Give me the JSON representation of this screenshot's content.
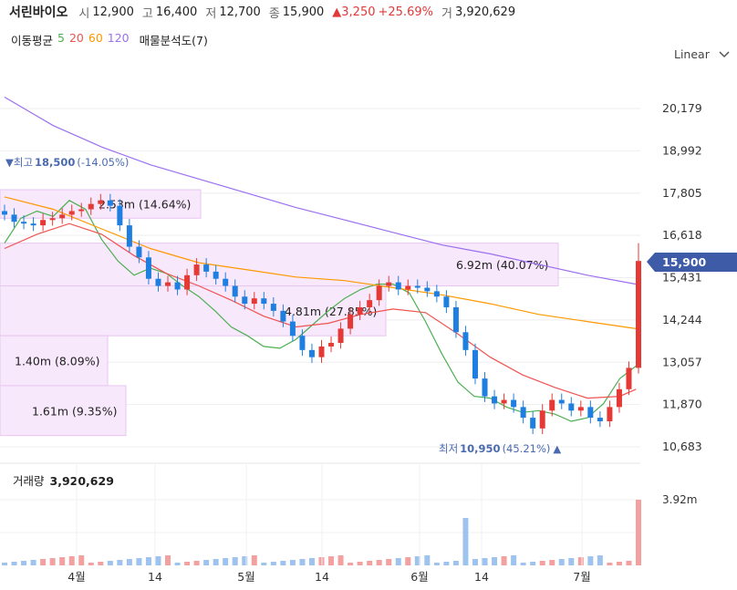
{
  "header": {
    "name": "서린바이오",
    "open_label": "시",
    "open": "12,900",
    "high_label": "고",
    "high": "16,400",
    "low_label": "저",
    "low": "12,700",
    "close_label": "종",
    "close": "15,900",
    "change": "▲3,250",
    "change_pct": "+25.69%",
    "volume_label": "거",
    "volume": "3,920,629"
  },
  "ma_legend": {
    "label": "이동평균",
    "periods": [
      "5",
      "20",
      "60",
      "120"
    ],
    "colors": [
      "#4caf50",
      "#ef5350",
      "#ff9800",
      "#9c6ff0"
    ],
    "vp_label": "매물분석도(7)"
  },
  "scale_mode": "Linear",
  "colors": {
    "up": "#e53935",
    "down": "#1e7fe0",
    "volume_profile": "#f7e8fb",
    "price_tag": "#3d5ba7"
  },
  "chart_data": {
    "type": "candlestick",
    "y_ticks": [
      "20,179",
      "18,992",
      "17,805",
      "16,618",
      "15,431",
      "14,244",
      "13,057",
      "11,870",
      "10,683"
    ],
    "x_ticks": [
      "4월",
      "14",
      "5월",
      "14",
      "6월",
      "14",
      "7월"
    ],
    "last_price": "15,900",
    "high_marker": {
      "label": "최고",
      "value": "18,500",
      "pct": "(-14.05%)"
    },
    "low_marker": {
      "label": "최저",
      "value": "10,950",
      "pct": "(45.21%)"
    },
    "volume_profile": [
      {
        "text": "2.53m (14.64%)",
        "low": 17100,
        "high": 17900
      },
      {
        "text": "6.92m (40.07%)",
        "low": 15200,
        "high": 16400
      },
      {
        "text": "4.81m (27.85%)",
        "low": 13800,
        "high": 15200
      },
      {
        "text": "1.40m (8.09%)",
        "low": 12400,
        "high": 13800
      },
      {
        "text": "1.61m (9.35%)",
        "low": 11000,
        "high": 12400
      }
    ],
    "volume_title": "거래량",
    "volume_value": "3,920,629",
    "volume_axis": "3.92m",
    "ma_series": {
      "ma5": [
        [
          0,
          16400
        ],
        [
          10,
          17100
        ],
        [
          20,
          17300
        ],
        [
          30,
          17150
        ],
        [
          40,
          17600
        ],
        [
          50,
          17350
        ],
        [
          60,
          16500
        ],
        [
          70,
          15900
        ],
        [
          80,
          15500
        ],
        [
          90,
          15700
        ],
        [
          100,
          15550
        ],
        [
          110,
          15200
        ],
        [
          120,
          14900
        ],
        [
          130,
          14500
        ],
        [
          140,
          14050
        ],
        [
          150,
          13800
        ],
        [
          160,
          13500
        ],
        [
          170,
          13450
        ],
        [
          180,
          13700
        ],
        [
          190,
          14100
        ],
        [
          200,
          14500
        ],
        [
          210,
          14850
        ],
        [
          220,
          15100
        ],
        [
          230,
          15250
        ],
        [
          240,
          15250
        ],
        [
          250,
          15000
        ],
        [
          260,
          14200
        ],
        [
          270,
          13300
        ],
        [
          280,
          12500
        ],
        [
          290,
          12100
        ],
        [
          300,
          12050
        ],
        [
          310,
          11800
        ],
        [
          320,
          11650
        ],
        [
          330,
          11700
        ],
        [
          340,
          11600
        ],
        [
          350,
          11400
        ],
        [
          360,
          11500
        ],
        [
          370,
          11900
        ],
        [
          380,
          12600
        ],
        [
          390,
          12950
        ]
      ],
      "ma20": [
        [
          0,
          16250
        ],
        [
          20,
          16650
        ],
        [
          40,
          16950
        ],
        [
          60,
          16650
        ],
        [
          80,
          16050
        ],
        [
          100,
          15550
        ],
        [
          120,
          15200
        ],
        [
          140,
          14800
        ],
        [
          160,
          14350
        ],
        [
          180,
          14050
        ],
        [
          200,
          14150
        ],
        [
          220,
          14400
        ],
        [
          240,
          14550
        ],
        [
          260,
          14450
        ],
        [
          280,
          13850
        ],
        [
          300,
          13200
        ],
        [
          320,
          12700
        ],
        [
          340,
          12350
        ],
        [
          360,
          12050
        ],
        [
          380,
          12100
        ],
        [
          390,
          12300
        ]
      ],
      "ma60": [
        [
          0,
          17700
        ],
        [
          30,
          17350
        ],
        [
          60,
          16800
        ],
        [
          90,
          16250
        ],
        [
          120,
          15850
        ],
        [
          150,
          15650
        ],
        [
          180,
          15450
        ],
        [
          210,
          15350
        ],
        [
          240,
          15150
        ],
        [
          270,
          14950
        ],
        [
          300,
          14700
        ],
        [
          330,
          14400
        ],
        [
          360,
          14200
        ],
        [
          390,
          14000
        ]
      ],
      "ma120": [
        [
          0,
          20500
        ],
        [
          30,
          19700
        ],
        [
          60,
          19100
        ],
        [
          90,
          18600
        ],
        [
          120,
          18200
        ],
        [
          150,
          17800
        ],
        [
          180,
          17400
        ],
        [
          210,
          17050
        ],
        [
          240,
          16700
        ],
        [
          270,
          16350
        ],
        [
          300,
          16100
        ],
        [
          330,
          15800
        ],
        [
          360,
          15500
        ],
        [
          390,
          15250
        ]
      ]
    }
  }
}
